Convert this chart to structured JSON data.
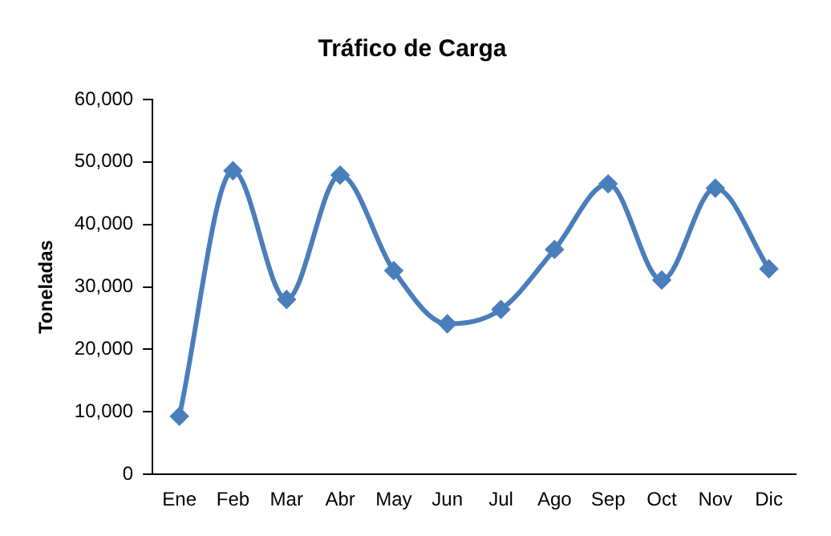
{
  "chart_data": {
    "type": "line",
    "title": "Tráfico de Carga",
    "ylabel": "Toneladas",
    "categories": [
      "Ene",
      "Feb",
      "Mar",
      "Abr",
      "May",
      "Jun",
      "Jul",
      "Ago",
      "Sep",
      "Oct",
      "Nov",
      "Dic"
    ],
    "series": [
      {
        "color": "#4a7ebb",
        "values": [
          9300,
          48600,
          28000,
          47900,
          32600,
          24100,
          26400,
          36000,
          46500,
          31100,
          45800,
          32900
        ]
      }
    ],
    "ylim": [
      0,
      60000
    ],
    "yticks": [
      {
        "value": 0,
        "label": "0"
      },
      {
        "value": 10000,
        "label": "10,000"
      },
      {
        "value": 20000,
        "label": "20,000"
      },
      {
        "value": 30000,
        "label": "30,000"
      },
      {
        "value": 40000,
        "label": "40,000"
      },
      {
        "value": 50000,
        "label": "50,000"
      },
      {
        "value": 60000,
        "label": "60,000"
      }
    ],
    "grid": false,
    "legend": false,
    "marker": "diamond",
    "line_style": "solid"
  }
}
